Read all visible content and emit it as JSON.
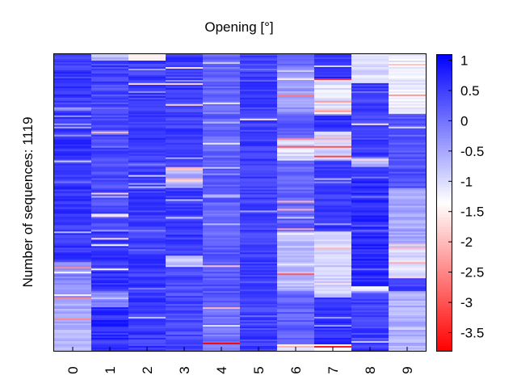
{
  "chart_data": {
    "type": "heatmap",
    "title": "Opening [°]",
    "xlabel": "",
    "ylabel": "Number of sequences: 1119",
    "x_categories": [
      "0",
      "1",
      "2",
      "3",
      "4",
      "5",
      "6",
      "7",
      "8",
      "9"
    ],
    "colorbar": {
      "min": -3.8,
      "max": 1.1,
      "ticks": [
        "1",
        "0.5",
        "0",
        "-0.5",
        "-1",
        "-1.5",
        "-2",
        "-2.5",
        "-3",
        "-3.5"
      ],
      "tick_values": [
        1,
        0.5,
        0,
        -0.5,
        -1,
        -1.5,
        -2,
        -2.5,
        -3,
        -3.5
      ],
      "colors": {
        "high": "#0000ff",
        "mid": "#ffffff",
        "low": "#ff0000"
      },
      "mid_value": -1.35
    },
    "columns": [
      {
        "col": "0",
        "segments": [
          [
            0,
            0.18,
            0.55
          ],
          [
            0.18,
            0.19,
            -0.4
          ],
          [
            0.19,
            0.7,
            0.6
          ],
          [
            0.7,
            0.83,
            -0.2
          ],
          [
            0.83,
            0.9,
            -0.5
          ],
          [
            0.9,
            1.0,
            -0.6
          ]
        ]
      },
      {
        "col": "1",
        "segments": [
          [
            0,
            0.02,
            -0.7
          ],
          [
            0.02,
            0.1,
            0.5
          ],
          [
            0.1,
            0.6,
            0.4
          ],
          [
            0.6,
            0.8,
            0.6
          ],
          [
            0.8,
            0.85,
            -0.2
          ],
          [
            0.85,
            1.0,
            0.7
          ]
        ]
      },
      {
        "col": "2",
        "segments": [
          [
            0,
            0.02,
            -1.3
          ],
          [
            0.02,
            1.0,
            0.55
          ]
        ]
      },
      {
        "col": "3",
        "segments": [
          [
            0,
            0.15,
            0.6
          ],
          [
            0.15,
            0.38,
            0.5
          ],
          [
            0.38,
            0.45,
            -0.6
          ],
          [
            0.45,
            0.68,
            0.55
          ],
          [
            0.68,
            0.72,
            -0.8
          ],
          [
            0.72,
            1.0,
            0.4
          ]
        ]
      },
      {
        "col": "4",
        "segments": [
          [
            0,
            0.1,
            0.1
          ],
          [
            0.1,
            0.4,
            0.15
          ],
          [
            0.4,
            0.5,
            0.3
          ],
          [
            0.5,
            0.63,
            0.1
          ],
          [
            0.63,
            0.85,
            0.25
          ],
          [
            0.85,
            1.0,
            0.0
          ]
        ]
      },
      {
        "col": "5",
        "segments": [
          [
            0,
            1.0,
            0.5
          ]
        ]
      },
      {
        "col": "6",
        "segments": [
          [
            0,
            0.05,
            0.0
          ],
          [
            0.05,
            0.2,
            -0.4
          ],
          [
            0.2,
            0.28,
            0.2
          ],
          [
            0.28,
            0.36,
            -1.0
          ],
          [
            0.36,
            0.48,
            0.1
          ],
          [
            0.48,
            0.6,
            0.2
          ],
          [
            0.6,
            0.8,
            -0.7
          ],
          [
            0.8,
            0.98,
            0.2
          ],
          [
            0.98,
            1.0,
            -1.2
          ]
        ]
      },
      {
        "col": "7",
        "segments": [
          [
            0,
            0.08,
            0.6
          ],
          [
            0.08,
            0.2,
            -1.1
          ],
          [
            0.2,
            0.26,
            0.6
          ],
          [
            0.26,
            0.36,
            -0.9
          ],
          [
            0.36,
            0.6,
            0.55
          ],
          [
            0.6,
            0.82,
            -0.9
          ],
          [
            0.82,
            0.98,
            0.6
          ],
          [
            0.98,
            1.0,
            -1.3
          ]
        ]
      },
      {
        "col": "8",
        "segments": [
          [
            0,
            0.1,
            -1.0
          ],
          [
            0.1,
            0.35,
            0.5
          ],
          [
            0.35,
            0.38,
            -0.6
          ],
          [
            0.38,
            0.78,
            0.7
          ],
          [
            0.78,
            0.8,
            -1.2
          ],
          [
            0.8,
            1.0,
            0.5
          ]
        ]
      },
      {
        "col": "9",
        "segments": [
          [
            0,
            0.2,
            -1.2
          ],
          [
            0.2,
            0.45,
            0.3
          ],
          [
            0.45,
            0.65,
            -0.5
          ],
          [
            0.65,
            0.75,
            -1.0
          ],
          [
            0.75,
            0.8,
            0.5
          ],
          [
            0.8,
            1.0,
            -0.6
          ]
        ]
      }
    ]
  }
}
